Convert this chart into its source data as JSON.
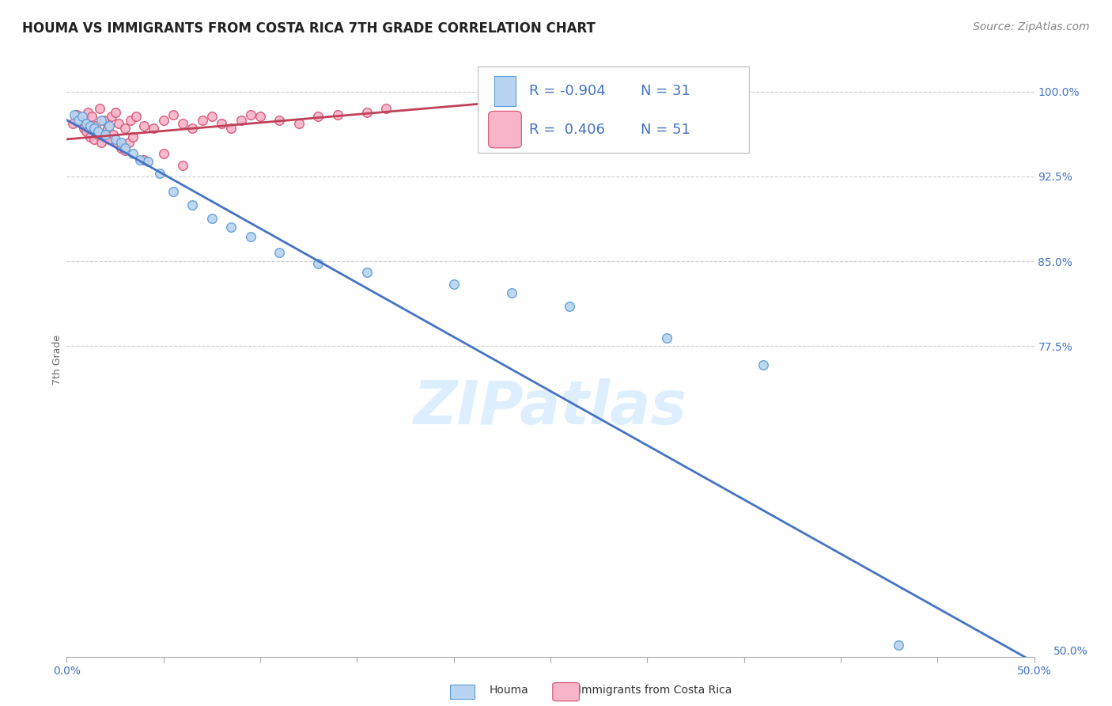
{
  "title": "HOUMA VS IMMIGRANTS FROM COSTA RICA 7TH GRADE CORRELATION CHART",
  "source": "Source: ZipAtlas.com",
  "ylabel": "7th Grade",
  "xlim": [
    0.0,
    0.5
  ],
  "ylim": [
    0.5,
    1.025
  ],
  "yticks_right": [
    1.0,
    0.925,
    0.85,
    0.775
  ],
  "ytick_labels_right": [
    "100.0%",
    "92.5%",
    "85.0%",
    "77.5%"
  ],
  "houma_R": -0.904,
  "houma_N": 31,
  "immigrants_R": 0.406,
  "immigrants_N": 51,
  "blue_fill": "#b8d4f0",
  "blue_edge": "#5b9bd5",
  "pink_fill": "#f8b4c8",
  "pink_edge": "#d45070",
  "blue_line": "#4472c4",
  "pink_line": "#c0405a",
  "accent_blue": "#4472c4",
  "grid_color": "#cccccc",
  "watermark_color": "#ddeeff",
  "bg": "#ffffff",
  "title_fs": 12,
  "source_fs": 10,
  "tick_fs": 10,
  "legend_fs": 13,
  "ylabel_fs": 9,
  "marker_size": 70,
  "houma_x": [
    0.004,
    0.006,
    0.008,
    0.01,
    0.012,
    0.014,
    0.016,
    0.018,
    0.02,
    0.022,
    0.025,
    0.028,
    0.03,
    0.034,
    0.038,
    0.042,
    0.048,
    0.055,
    0.065,
    0.075,
    0.085,
    0.095,
    0.11,
    0.13,
    0.155,
    0.2,
    0.23,
    0.26,
    0.31,
    0.36,
    0.43
  ],
  "houma_y": [
    0.98,
    0.975,
    0.978,
    0.972,
    0.97,
    0.968,
    0.965,
    0.975,
    0.962,
    0.97,
    0.958,
    0.955,
    0.95,
    0.945,
    0.94,
    0.938,
    0.928,
    0.912,
    0.9,
    0.888,
    0.88,
    0.872,
    0.858,
    0.848,
    0.84,
    0.83,
    0.822,
    0.81,
    0.782,
    0.758,
    0.51
  ],
  "immig_x": [
    0.003,
    0.005,
    0.007,
    0.009,
    0.011,
    0.013,
    0.015,
    0.017,
    0.019,
    0.021,
    0.023,
    0.025,
    0.027,
    0.03,
    0.033,
    0.036,
    0.04,
    0.045,
    0.05,
    0.055,
    0.06,
    0.065,
    0.07,
    0.075,
    0.08,
    0.085,
    0.09,
    0.095,
    0.1,
    0.11,
    0.12,
    0.13,
    0.14,
    0.155,
    0.165,
    0.01,
    0.012,
    0.014,
    0.016,
    0.018,
    0.02,
    0.022,
    0.024,
    0.026,
    0.028,
    0.03,
    0.032,
    0.034,
    0.04,
    0.05,
    0.06
  ],
  "immig_y": [
    0.972,
    0.98,
    0.975,
    0.968,
    0.982,
    0.978,
    0.97,
    0.985,
    0.975,
    0.968,
    0.978,
    0.982,
    0.972,
    0.968,
    0.975,
    0.978,
    0.97,
    0.968,
    0.975,
    0.98,
    0.972,
    0.968,
    0.975,
    0.978,
    0.972,
    0.968,
    0.975,
    0.98,
    0.978,
    0.975,
    0.972,
    0.978,
    0.98,
    0.982,
    0.985,
    0.965,
    0.96,
    0.958,
    0.962,
    0.955,
    0.96,
    0.958,
    0.962,
    0.955,
    0.95,
    0.948,
    0.955,
    0.96,
    0.94,
    0.945,
    0.935
  ],
  "blue_trendline_x": [
    0.0,
    0.5
  ],
  "blue_trendline_y": [
    0.975,
    0.495
  ],
  "pink_trendline_x": [
    0.0,
    0.3
  ],
  "pink_trendline_y": [
    0.958,
    1.002
  ]
}
